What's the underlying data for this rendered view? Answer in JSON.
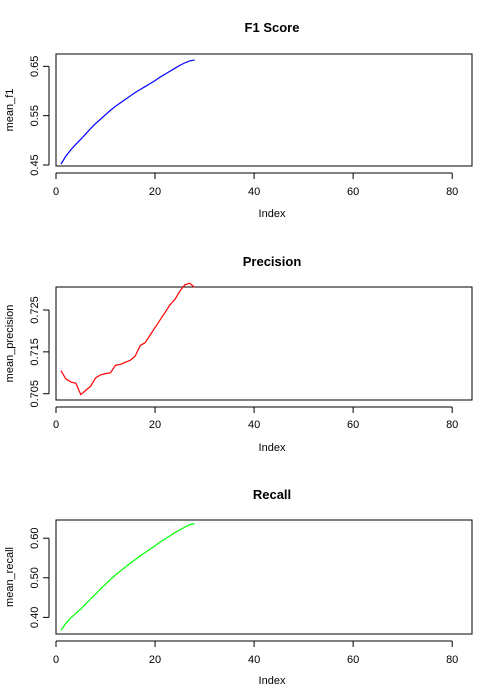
{
  "chart_data": [
    {
      "type": "line",
      "title": "F1 Score",
      "xlabel": "Index",
      "ylabel": "mean_f1",
      "xlim": [
        0,
        84
      ],
      "ylim": [
        0.448,
        0.675
      ],
      "xticks": [
        0,
        20,
        40,
        60,
        80
      ],
      "yticks": [
        "0.45",
        "0.55",
        "0.65"
      ],
      "series": [
        {
          "color": "#0000ff",
          "x": [
            1,
            2,
            3,
            4,
            5,
            6,
            7,
            8,
            9,
            10,
            11,
            12,
            13,
            14,
            15,
            16,
            17,
            18,
            19,
            20,
            21,
            22,
            23,
            24,
            25,
            26,
            27,
            28
          ],
          "y": [
            0.452,
            0.468,
            0.481,
            0.492,
            0.502,
            0.513,
            0.524,
            0.534,
            0.543,
            0.552,
            0.561,
            0.569,
            0.576,
            0.583,
            0.59,
            0.597,
            0.603,
            0.609,
            0.615,
            0.621,
            0.628,
            0.634,
            0.64,
            0.646,
            0.652,
            0.657,
            0.661,
            0.663
          ]
        }
      ]
    },
    {
      "type": "line",
      "title": "Precision",
      "xlabel": "Index",
      "ylabel": "mean_precision",
      "xlim": [
        0,
        84
      ],
      "ylim": [
        0.7035,
        0.7305
      ],
      "xticks": [
        0,
        20,
        40,
        60,
        80
      ],
      "yticks": [
        "0.705",
        "0.715",
        "0.725"
      ],
      "series": [
        {
          "color": "#ff0000",
          "x": [
            1,
            2,
            3,
            4,
            5,
            6,
            7,
            8,
            9,
            10,
            11,
            12,
            13,
            14,
            15,
            16,
            17,
            18,
            19,
            20,
            21,
            22,
            23,
            24,
            25,
            26,
            27,
            28
          ],
          "y": [
            0.7105,
            0.7085,
            0.7078,
            0.7075,
            0.7048,
            0.7058,
            0.7068,
            0.7088,
            0.7095,
            0.7098,
            0.71,
            0.7118,
            0.712,
            0.7125,
            0.713,
            0.714,
            0.7165,
            0.7172,
            0.719,
            0.7208,
            0.7226,
            0.7244,
            0.7262,
            0.7275,
            0.7295,
            0.731,
            0.7314,
            0.7304
          ]
        }
      ]
    },
    {
      "type": "line",
      "title": "Recall",
      "xlabel": "Index",
      "ylabel": "mean_recall",
      "xlim": [
        0,
        84
      ],
      "ylim": [
        0.358,
        0.646
      ],
      "xticks": [
        0,
        20,
        40,
        60,
        80
      ],
      "yticks": [
        "0.40",
        "0.50",
        "0.60"
      ],
      "series": [
        {
          "color": "#00ff00",
          "x": [
            1,
            2,
            3,
            4,
            5,
            6,
            7,
            8,
            9,
            10,
            11,
            12,
            13,
            14,
            15,
            16,
            17,
            18,
            19,
            20,
            21,
            22,
            23,
            24,
            25,
            26,
            27,
            28
          ],
          "y": [
            0.367,
            0.385,
            0.399,
            0.41,
            0.421,
            0.434,
            0.447,
            0.459,
            0.472,
            0.484,
            0.496,
            0.507,
            0.517,
            0.527,
            0.537,
            0.546,
            0.555,
            0.564,
            0.572,
            0.581,
            0.59,
            0.598,
            0.606,
            0.614,
            0.621,
            0.628,
            0.634,
            0.637
          ]
        }
      ]
    }
  ]
}
